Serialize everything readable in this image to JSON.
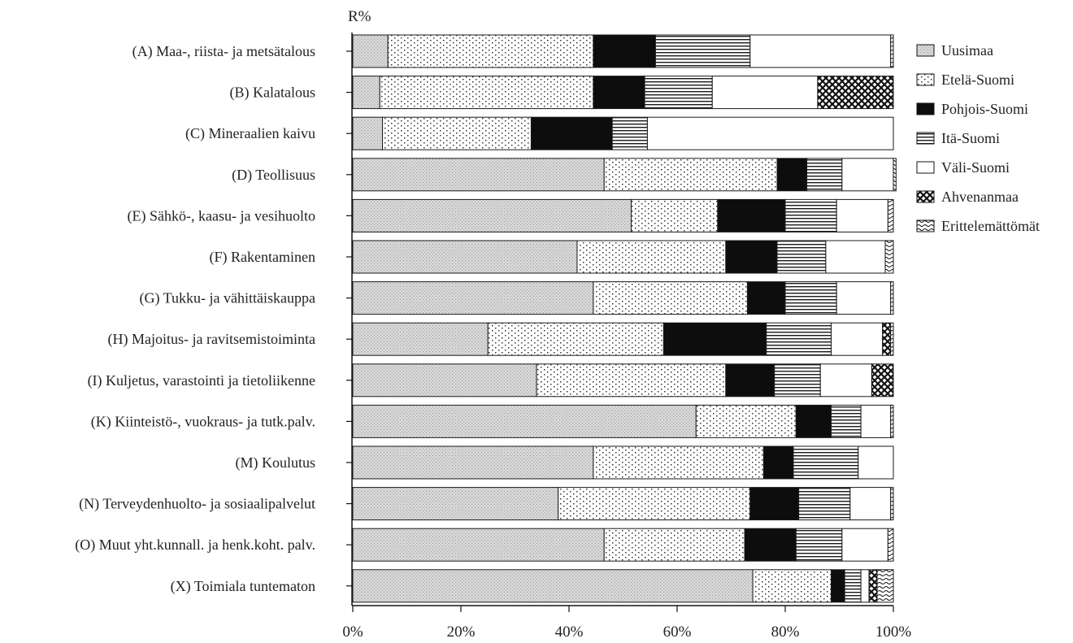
{
  "chart_data": {
    "type": "bar",
    "orientation": "horizontal",
    "stacked": true,
    "normalized": true,
    "title": "",
    "xlabel": "",
    "ylabel": "R%",
    "xlim": [
      0,
      100
    ],
    "x_ticks": [
      "0%",
      "20%",
      "40%",
      "60%",
      "80%",
      "100%"
    ],
    "legend_position": "top-right",
    "grid": false,
    "categories": [
      "(A) Maa-, riista- ja metsätalous",
      "(B) Kalatalous",
      "(C) Mineraalien kaivu",
      "(D) Teollisuus",
      "(E) Sähkö-, kaasu- ja vesihuolto",
      "(F) Rakentaminen",
      "(G) Tukku- ja vähittäiskauppa",
      "(H) Majoitus- ja ravitsemistoiminta",
      "(I) Kuljetus, varastointi ja tietoliikenne",
      "(K) Kiinteistö-, vuokraus- ja tutk.palv.",
      "(M) Koulutus",
      "(N) Terveydenhuolto- ja sosiaalipalvelut",
      "(O) Muut yht.kunnall. ja henk.koht. palv.",
      "(X) Toimiala tuntematon"
    ],
    "series": [
      {
        "name": "Uusimaa",
        "pattern": "light-gray-stipple",
        "values": [
          6.5,
          5,
          5.5,
          46.5,
          51.5,
          41.5,
          44.5,
          25,
          34,
          63.5,
          44.5,
          38,
          46.5,
          74
        ]
      },
      {
        "name": "Etelä-Suomi",
        "pattern": "dots",
        "values": [
          38,
          39.5,
          27.5,
          32,
          16,
          27.5,
          28.5,
          32.5,
          35,
          18.5,
          31.5,
          35.5,
          26,
          14.5
        ]
      },
      {
        "name": "Pohjois-Suomi",
        "pattern": "black",
        "values": [
          11.5,
          9.5,
          15,
          5.5,
          12.5,
          9.5,
          7,
          19,
          9,
          6.5,
          5.5,
          9,
          9.5,
          2.5
        ]
      },
      {
        "name": "Itä-Suomi",
        "pattern": "horizontal-lines",
        "values": [
          17.5,
          12.5,
          6.5,
          6.5,
          9.5,
          9,
          9.5,
          12,
          8.5,
          5.5,
          12,
          9.5,
          8.5,
          3
        ]
      },
      {
        "name": "Väli-Suomi",
        "pattern": "white",
        "values": [
          26,
          19.5,
          45.5,
          9.5,
          9.5,
          11,
          10,
          9.5,
          9.5,
          5.5,
          6.5,
          7.5,
          8.5,
          1.5
        ]
      },
      {
        "name": "Ahvenanmaa",
        "pattern": "crosshatch",
        "values": [
          0,
          14,
          0,
          0,
          0,
          0,
          0,
          1.5,
          4,
          0,
          0,
          0,
          0,
          1.5
        ]
      },
      {
        "name": "Erittelemättömät",
        "pattern": "waves",
        "values": [
          0.5,
          0,
          0,
          0.5,
          1,
          1.5,
          0.5,
          0.5,
          0,
          0.5,
          0,
          0.5,
          1,
          3
        ]
      }
    ]
  }
}
